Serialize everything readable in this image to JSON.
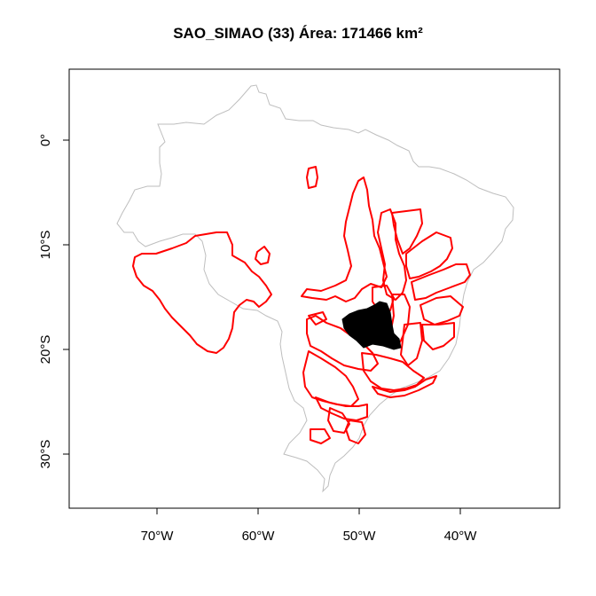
{
  "map": {
    "title": "SAO_SIMAO (33) Área: 171466 km²",
    "x_ticks": [
      {
        "value": -70,
        "label": "70°W"
      },
      {
        "value": -60,
        "label": "60°W"
      },
      {
        "value": -50,
        "label": "50°W"
      },
      {
        "value": -40,
        "label": "40°W"
      }
    ],
    "y_ticks": [
      {
        "value": 0,
        "label": "0°"
      },
      {
        "value": -10,
        "label": "10°S"
      },
      {
        "value": -20,
        "label": "20°S"
      },
      {
        "value": -30,
        "label": "30°S"
      }
    ],
    "colors": {
      "country_outline": "#bebebe",
      "basins": "#ff0000",
      "highlight": "#000000",
      "frame": "#000000"
    }
  }
}
